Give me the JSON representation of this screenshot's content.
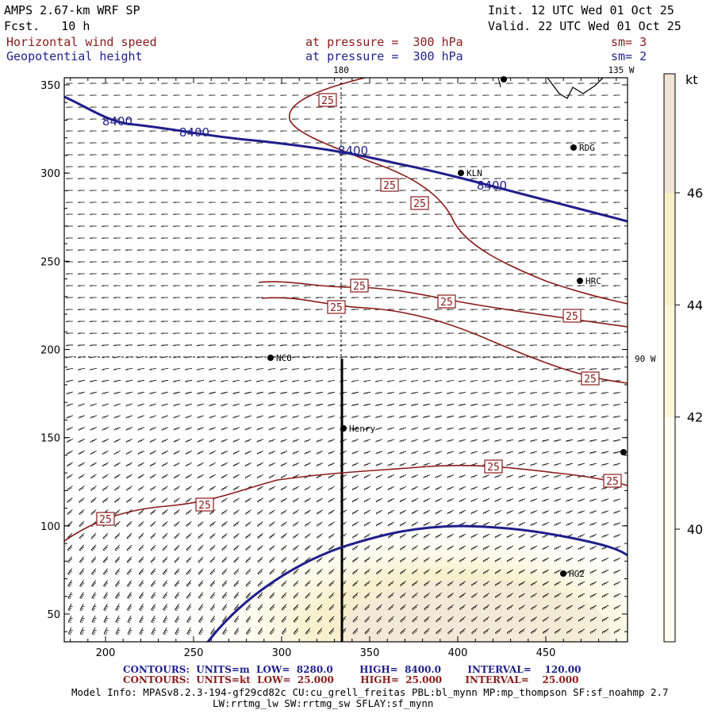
{
  "header": {
    "model": "AMPS 2.67-km WRF SP",
    "forecast": "Fcst.   10 h",
    "init": "Init. 12 UTC Wed 01 Oct 25",
    "valid": "Valid. 22 UTC Wed 01 Oct 25",
    "field1": "Horizontal wind speed",
    "field2": "Geopotential height",
    "level1": "at pressure =  300 hPa",
    "level2": "at pressure =  300 hPa",
    "sm1": "sm= 3",
    "sm2": "sm= 2"
  },
  "map": {
    "x_ticks": [
      "200",
      "250",
      "300",
      "350",
      "400",
      "450"
    ],
    "y_ticks": [
      "350",
      "300",
      "250",
      "200",
      "150",
      "100",
      "50"
    ],
    "meridian_label_top": "180",
    "meridian_label_top_right": "135 W",
    "meridian_label_right": "90 W",
    "height_contour_labels": [
      "8400",
      "8400",
      "8400",
      "8400"
    ],
    "wind_contour_labels": [
      "25",
      "25",
      "25",
      "25",
      "25",
      "25",
      "25",
      "25",
      "25",
      "25",
      "25",
      "25"
    ],
    "stations": [
      "RDG",
      "KLN",
      "HRC",
      "NCO",
      "Henry",
      "HG2"
    ],
    "colors": {
      "height_contour": "#1f1f8c",
      "wind_contour": "#8b1a1a",
      "barb": "#000000"
    }
  },
  "colorbar": {
    "unit": "kt",
    "ticks": [
      "46",
      "44",
      "42",
      "40"
    ],
    "tick_values": [
      46,
      44,
      42,
      40
    ],
    "colors": [
      "#f0e3d6",
      "#f7efc8",
      "#fbf6d6",
      "#fffdf0"
    ]
  },
  "footer": {
    "contours_height": "CONTOURS:  UNITS=m  LOW=  8280.0        HIGH=  8400.0        INTERVAL=    120.00",
    "contours_wind": "CONTOURS:  UNITS=kt  LOW=  25.000        HIGH=  25.000       INTERVAL=    25.000",
    "model_info": "Model Info: MPASv8.2.3-194-gf29cd82c CU:cu_grell_freitas PBL:bl_mynn MP:mp_thompson SF:sf_noahmp 2.7",
    "model_info2": "LW:rrtmg_lw SW:rrtmg_sw SFLAY:sf_mynn"
  }
}
